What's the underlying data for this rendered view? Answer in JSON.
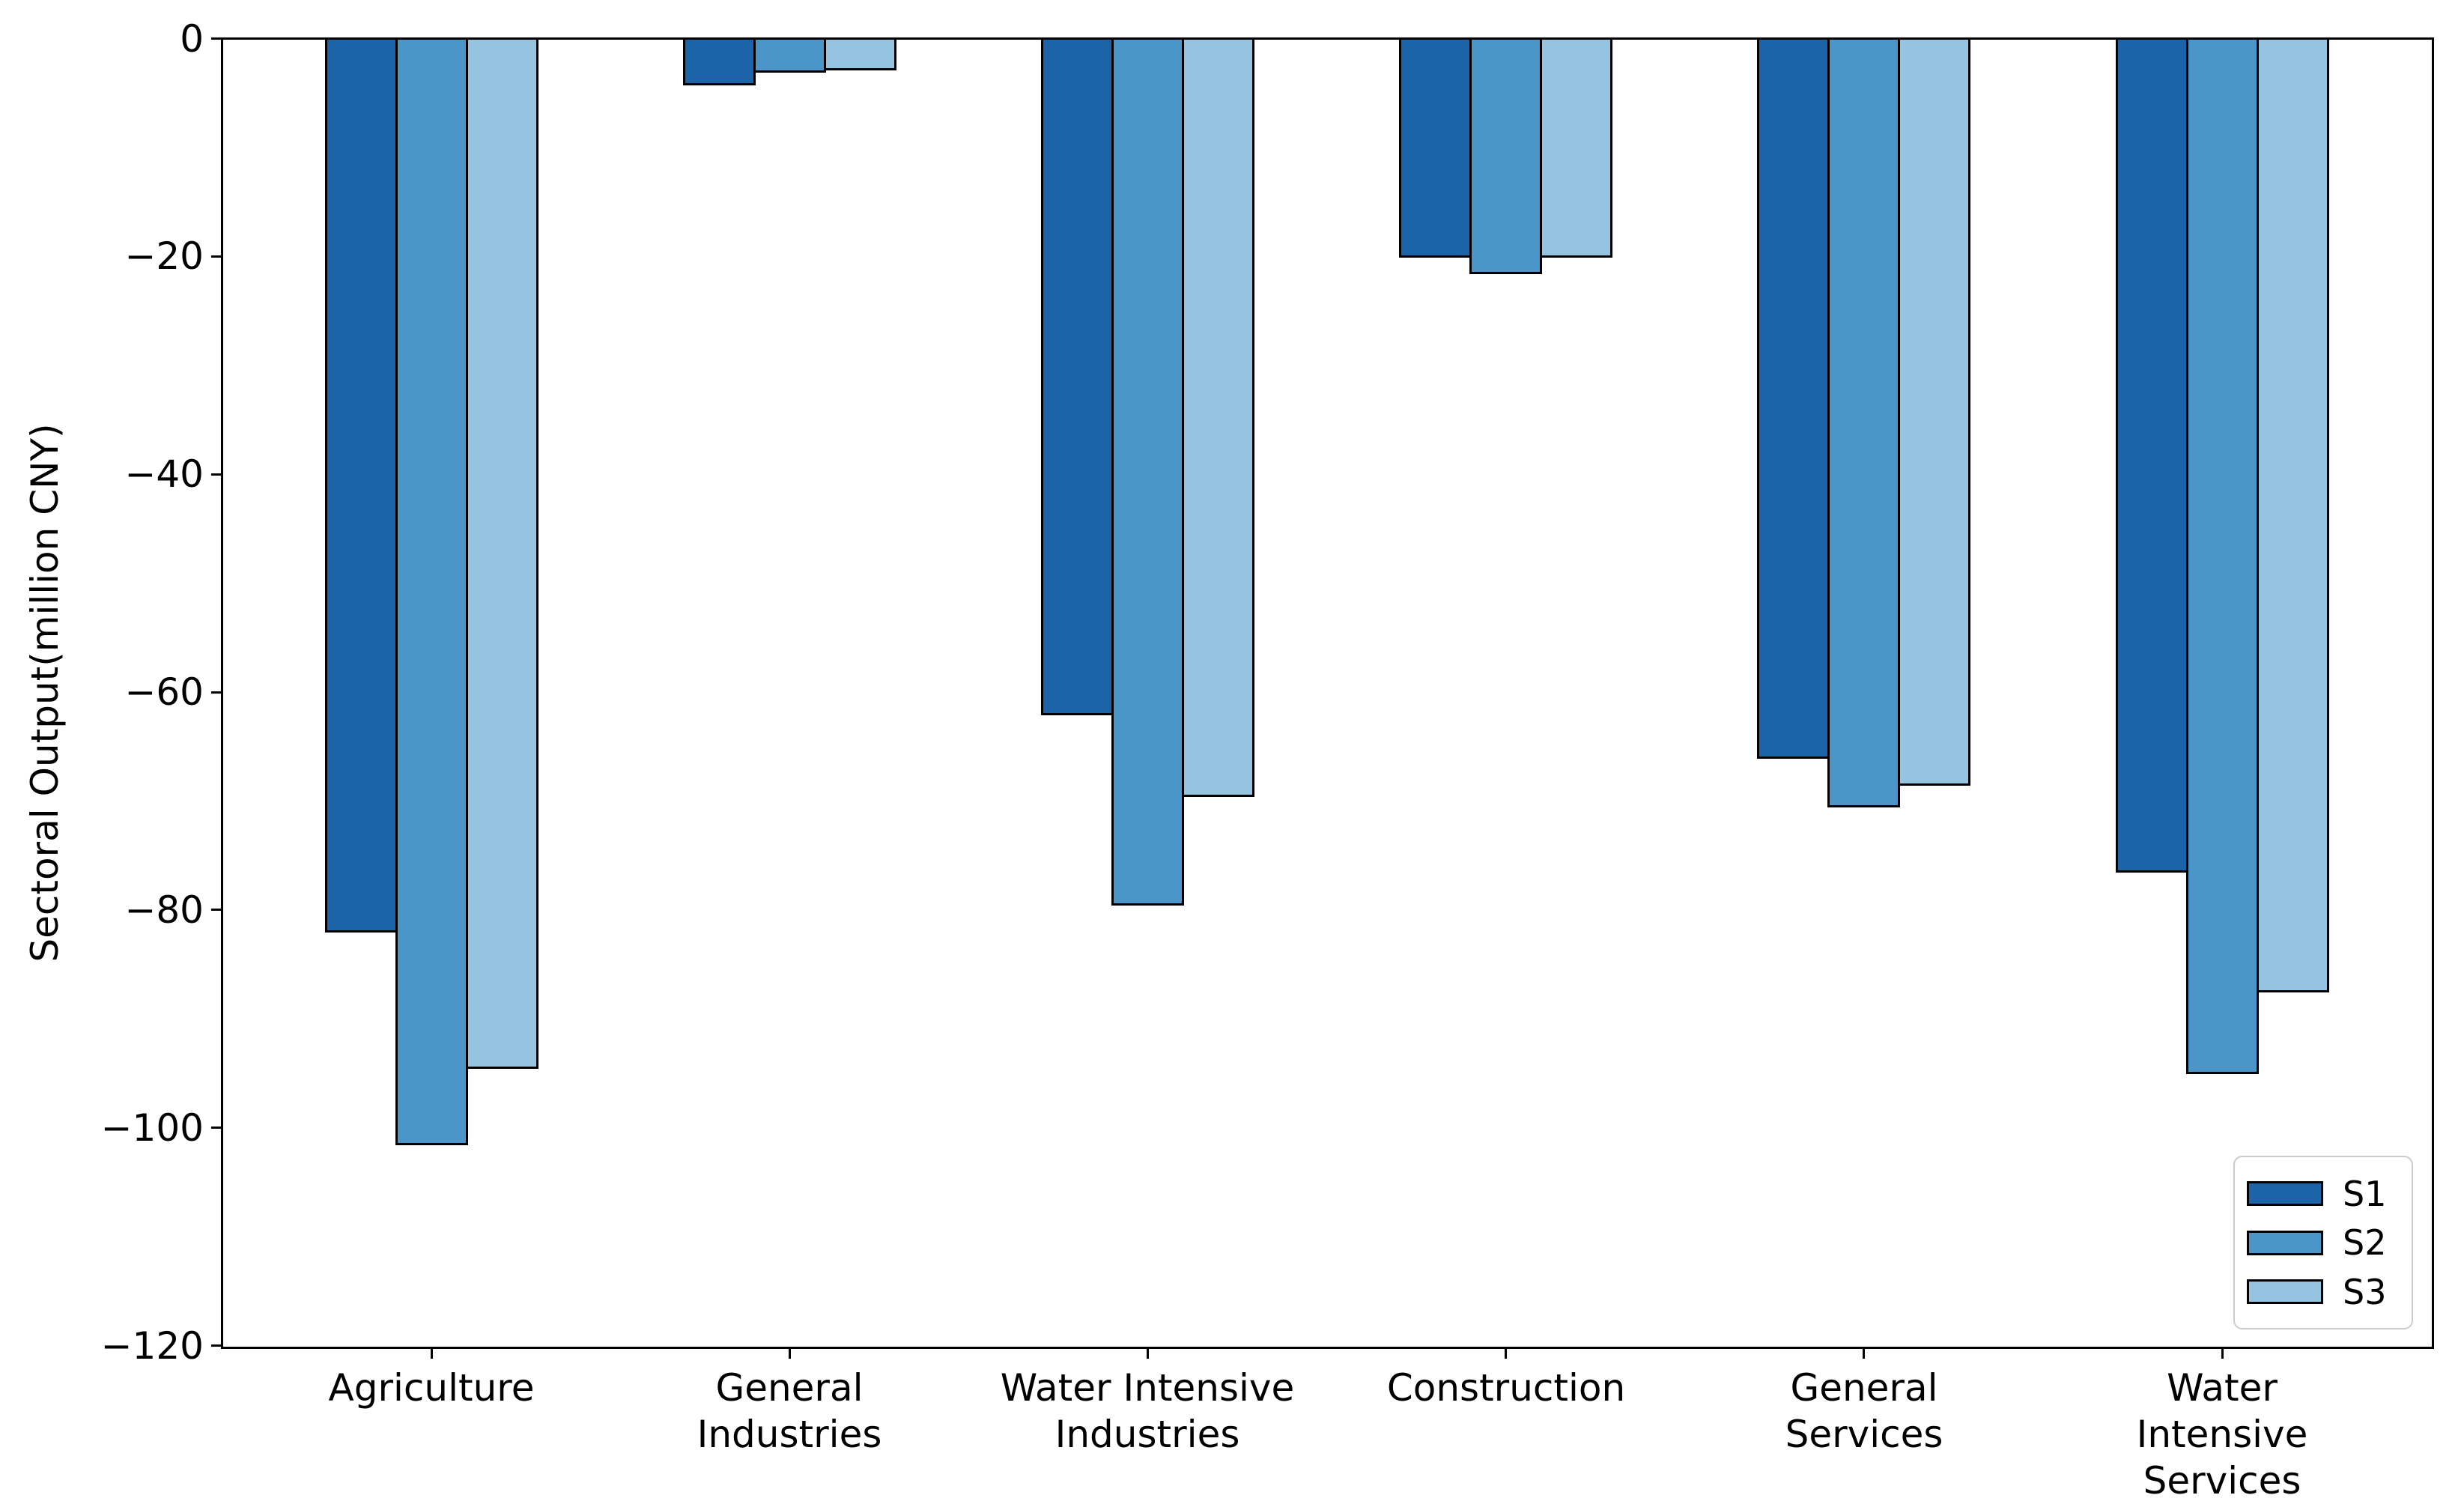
{
  "chart_data": {
    "type": "bar",
    "title": "",
    "xlabel": "",
    "ylabel": "Sectoral Output(million CNY)",
    "ylim": [
      -120,
      0
    ],
    "grid": false,
    "legend_position": "lower right",
    "bar_edge_color": "#000000",
    "yticks": [
      {
        "value": 0,
        "label": "0"
      },
      {
        "value": -20,
        "label": "−20"
      },
      {
        "value": -40,
        "label": "−40"
      },
      {
        "value": -60,
        "label": "−60"
      },
      {
        "value": -80,
        "label": "−80"
      },
      {
        "value": -100,
        "label": "−100"
      },
      {
        "value": -120,
        "label": "−120"
      }
    ],
    "categories": [
      "Agriculture",
      "General\nIndustries",
      "Water Intensive\nIndustries",
      "Construction",
      "General\nServices",
      "Water Intensive\nServices"
    ],
    "series": [
      {
        "name": "S1",
        "color": "#1c64a8",
        "values": [
          -82,
          -4.2,
          -62,
          -20,
          -66,
          -76.5
        ]
      },
      {
        "name": "S2",
        "color": "#4a96c8",
        "values": [
          -101.5,
          -3.0,
          -79.5,
          -21.5,
          -70.5,
          -95
        ]
      },
      {
        "name": "S3",
        "color": "#94c4df",
        "values": [
          -94.5,
          -2.8,
          -69.5,
          -20,
          -68.5,
          -87.5
        ]
      }
    ]
  }
}
